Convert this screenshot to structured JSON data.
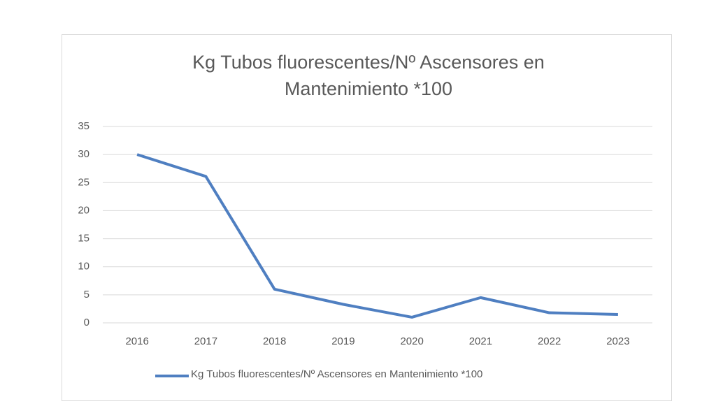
{
  "chart_data": {
    "type": "line",
    "title": "Kg Tubos fluorescentes/Nº Ascensores en Mantenimiento *100",
    "categories": [
      "2016",
      "2017",
      "2018",
      "2019",
      "2020",
      "2021",
      "2022",
      "2023"
    ],
    "series": [
      {
        "name": "Kg Tubos fluorescentes/Nº Ascensores en Mantenimiento *100",
        "color": "#4f7fc1",
        "values": [
          30,
          26.1,
          6,
          3.3,
          1,
          4.5,
          1.8,
          1.5
        ]
      }
    ],
    "ylim": [
      0,
      35
    ],
    "yticks": [
      0,
      5,
      10,
      15,
      20,
      25,
      30,
      35
    ],
    "grid": true,
    "legend": "bottom"
  }
}
